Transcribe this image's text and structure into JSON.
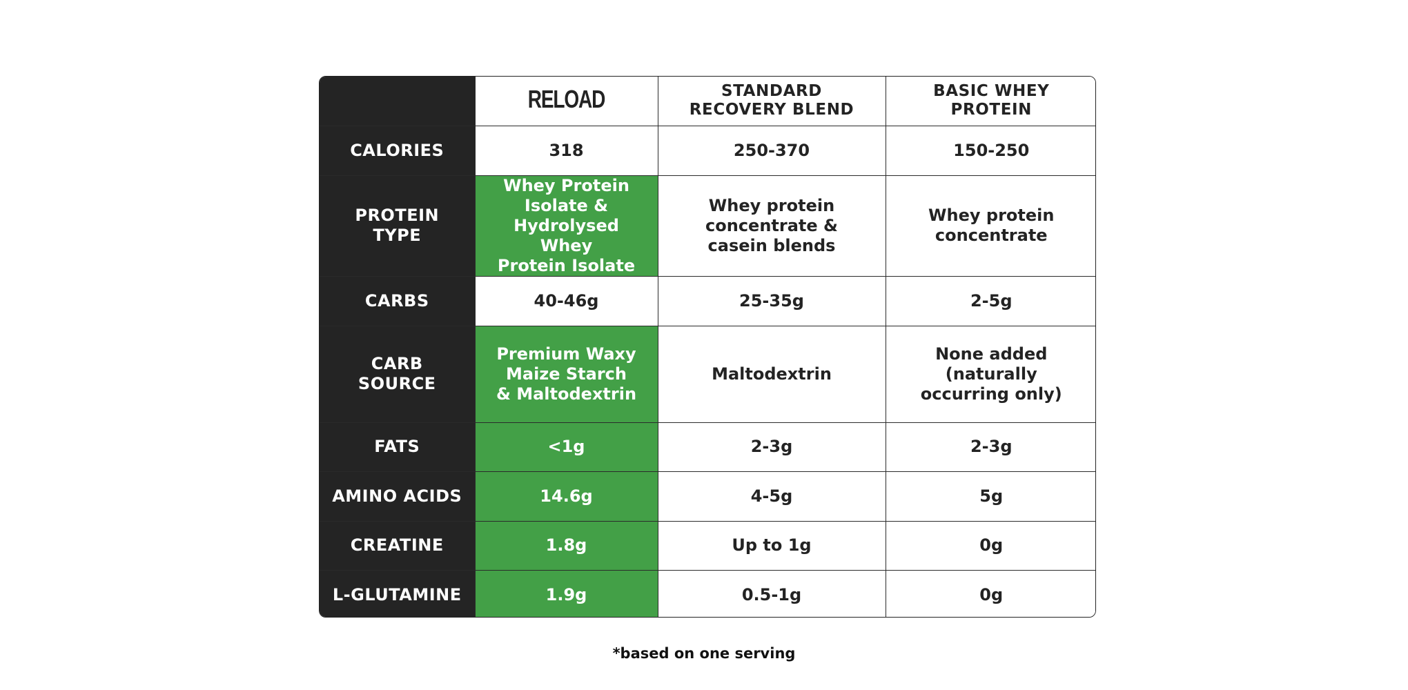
{
  "table": {
    "columns": [
      {
        "label": ""
      },
      {
        "label": "RELOAD"
      },
      {
        "label": "STANDARD RECOVERY BLEND",
        "line1": "STANDARD",
        "line2": "RECOVERY BLEND"
      },
      {
        "label": "BASIC WHEY PROTEIN"
      }
    ],
    "rows": [
      {
        "label": "CALORIES",
        "label_lines": [
          "CALORIES"
        ],
        "reload": [
          "318"
        ],
        "standard": [
          "250-370"
        ],
        "basic": [
          "150-250"
        ],
        "reload_highlight": false
      },
      {
        "label": "PROTEIN TYPE",
        "label_lines": [
          "PROTEIN",
          "TYPE"
        ],
        "reload": [
          "Whey Protein",
          "Isolate &",
          "Hydrolysed Whey",
          "Protein Isolate"
        ],
        "standard": [
          "Whey protein",
          "concentrate &",
          "casein blends"
        ],
        "basic": [
          "Whey protein",
          "concentrate"
        ],
        "reload_highlight": true
      },
      {
        "label": "CARBS",
        "label_lines": [
          "CARBS"
        ],
        "reload": [
          "40-46g"
        ],
        "standard": [
          "25-35g"
        ],
        "basic": [
          "2-5g"
        ],
        "reload_highlight": false
      },
      {
        "label": "CARB SOURCE",
        "label_lines": [
          "CARB",
          "SOURCE"
        ],
        "reload": [
          "Premium Waxy",
          "Maize Starch",
          "& Maltodextrin"
        ],
        "standard": [
          "Maltodextrin"
        ],
        "basic": [
          "None added",
          "(naturally",
          "occurring only)"
        ],
        "reload_highlight": true
      },
      {
        "label": "FATS",
        "label_lines": [
          "FATS"
        ],
        "reload": [
          "<1g"
        ],
        "standard": [
          "2-3g"
        ],
        "basic": [
          "2-3g"
        ],
        "reload_highlight": true
      },
      {
        "label": "AMINO ACIDS",
        "label_lines": [
          "AMINO ACIDS"
        ],
        "reload": [
          "14.6g"
        ],
        "standard": [
          "4-5g"
        ],
        "basic": [
          "5g"
        ],
        "reload_highlight": true
      },
      {
        "label": "CREATINE",
        "label_lines": [
          "CREATINE"
        ],
        "reload": [
          "1.8g"
        ],
        "standard": [
          "Up to 1g"
        ],
        "basic": [
          "0g"
        ],
        "reload_highlight": true
      },
      {
        "label": "L-GLUTAMINE",
        "label_lines": [
          "L-GLUTAMINE"
        ],
        "reload": [
          "1.9g"
        ],
        "standard": [
          "0.5-1g"
        ],
        "basic": [
          "0g"
        ],
        "reload_highlight": true
      }
    ]
  },
  "colors": {
    "label_bg": "#242424",
    "highlight_green": "#43a047",
    "text_dark": "#232323",
    "text_light": "#ffffff"
  },
  "footnote": "*based on one serving"
}
